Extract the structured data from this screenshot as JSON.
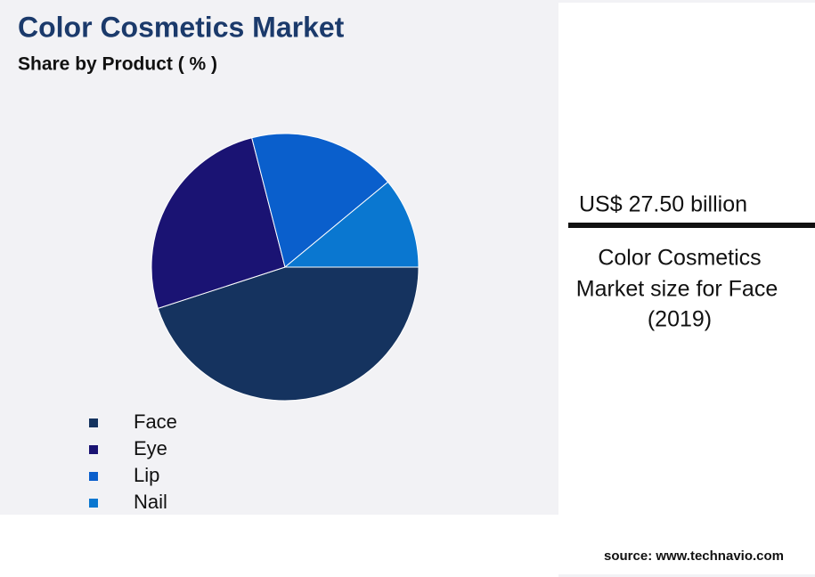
{
  "chart_data": {
    "type": "pie",
    "title": "Color Cosmetics Market",
    "subtitle": "Share by Product ( % )",
    "categories": [
      "Face",
      "Eye",
      "Lip",
      "Nail"
    ],
    "values": [
      45,
      26,
      18,
      11
    ],
    "colors": [
      "#15335f",
      "#1a1373",
      "#0a5fcc",
      "#0a77d0"
    ]
  },
  "panel": {
    "value": "US$ 27.50 billion",
    "caption": [
      "Color Cosmetics",
      "Market size for Face",
      "(2019)"
    ]
  },
  "source": "source: www.technavio.com"
}
